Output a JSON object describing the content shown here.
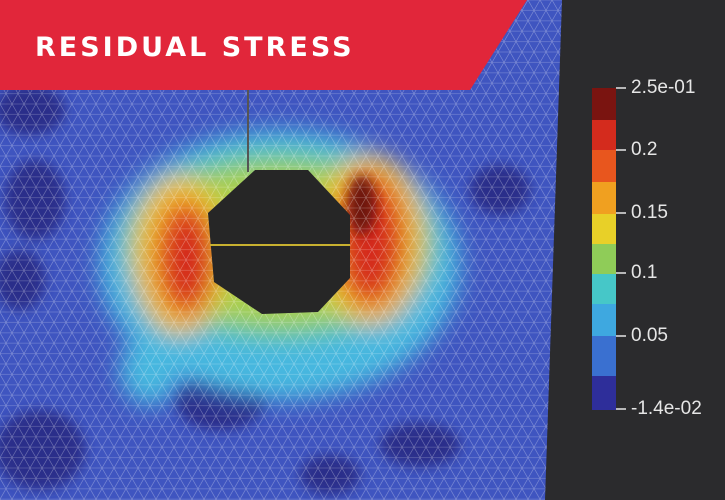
{
  "banner": {
    "title": "RESIDUAL STRESS"
  },
  "colorbar": {
    "labels": [
      "2.5e-01",
      "0.2",
      "0.15",
      "0.1",
      "0.05",
      "-1.4e-02"
    ]
  }
}
